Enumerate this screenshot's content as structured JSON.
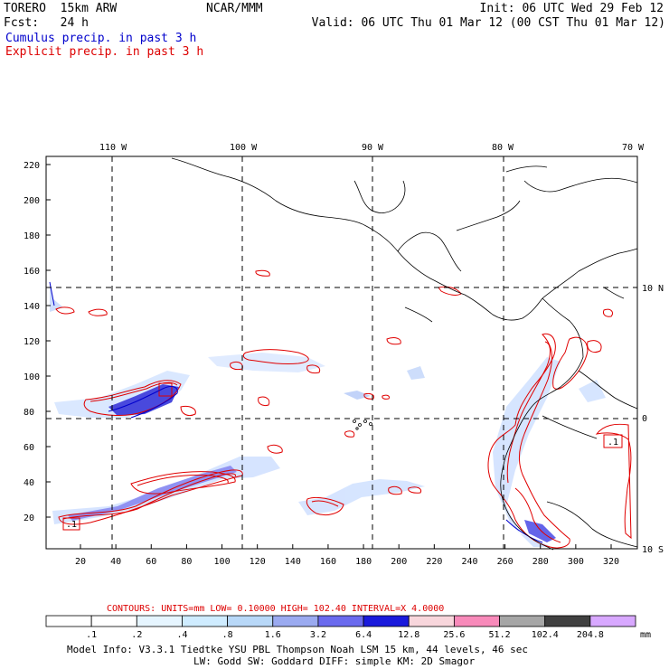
{
  "header": {
    "model": "TORERO  15km ARW",
    "center": "NCAR/MMM",
    "init": "Init: 06 UTC Wed 29 Feb 12",
    "fcst": "Fcst:   24 h",
    "valid": "Valid: 06 UTC Thu 01 Mar 12 (00 CST Thu 01 Mar 12)",
    "field1": "Cumulus precip. in past 3 h",
    "field2": "Explicit precip. in past 3 h",
    "field1_color": "#0000cc",
    "field2_color": "#dd0000"
  },
  "map": {
    "lon_labels": [
      "110 W",
      "100 W",
      "90 W",
      "80 W",
      "70 W"
    ],
    "lat_labels": [
      "10 N",
      "0",
      "10 S"
    ],
    "y_ticks": [
      "220",
      "200",
      "180",
      "160",
      "140",
      "120",
      "100",
      "80",
      "60",
      "40",
      "20"
    ],
    "x_ticks": [
      "20",
      "40",
      "60",
      "80",
      "100",
      "120",
      "140",
      "160",
      "180",
      "200",
      "220",
      "240",
      "260",
      "280",
      "300",
      "320"
    ],
    "markers": [
      ".1",
      ".1"
    ]
  },
  "footer": {
    "contours_line": "CONTOURS:  UNITS=mm  LOW= 0.10000      HIGH=  102.40      INTERVAL=X  4.0000",
    "scale_labels": [
      ".1",
      ".2",
      ".4",
      ".8",
      "1.6",
      "3.2",
      "6.4",
      "12.8",
      "25.6",
      "51.2",
      "102.4",
      "204.8"
    ],
    "scale_colors": [
      "#ffffff",
      "#ffffff",
      "#e6f5ff",
      "#cfecff",
      "#b8d8f8",
      "#9aaaf0",
      "#6a6aee",
      "#1a1adc",
      "#f8d6dc",
      "#f88aba",
      "#a6a6a6",
      "#404040",
      "#d8a8ff"
    ],
    "unit": "mm",
    "model_info1": "Model Info: V3.3.1    Tiedtke YSU PBL  Thompson    Noah LSM  15 km,    44 levels,    46 sec",
    "model_info2": "LW: Godd SW: Goddard DIFF: simple KM: 2D Smagor"
  }
}
